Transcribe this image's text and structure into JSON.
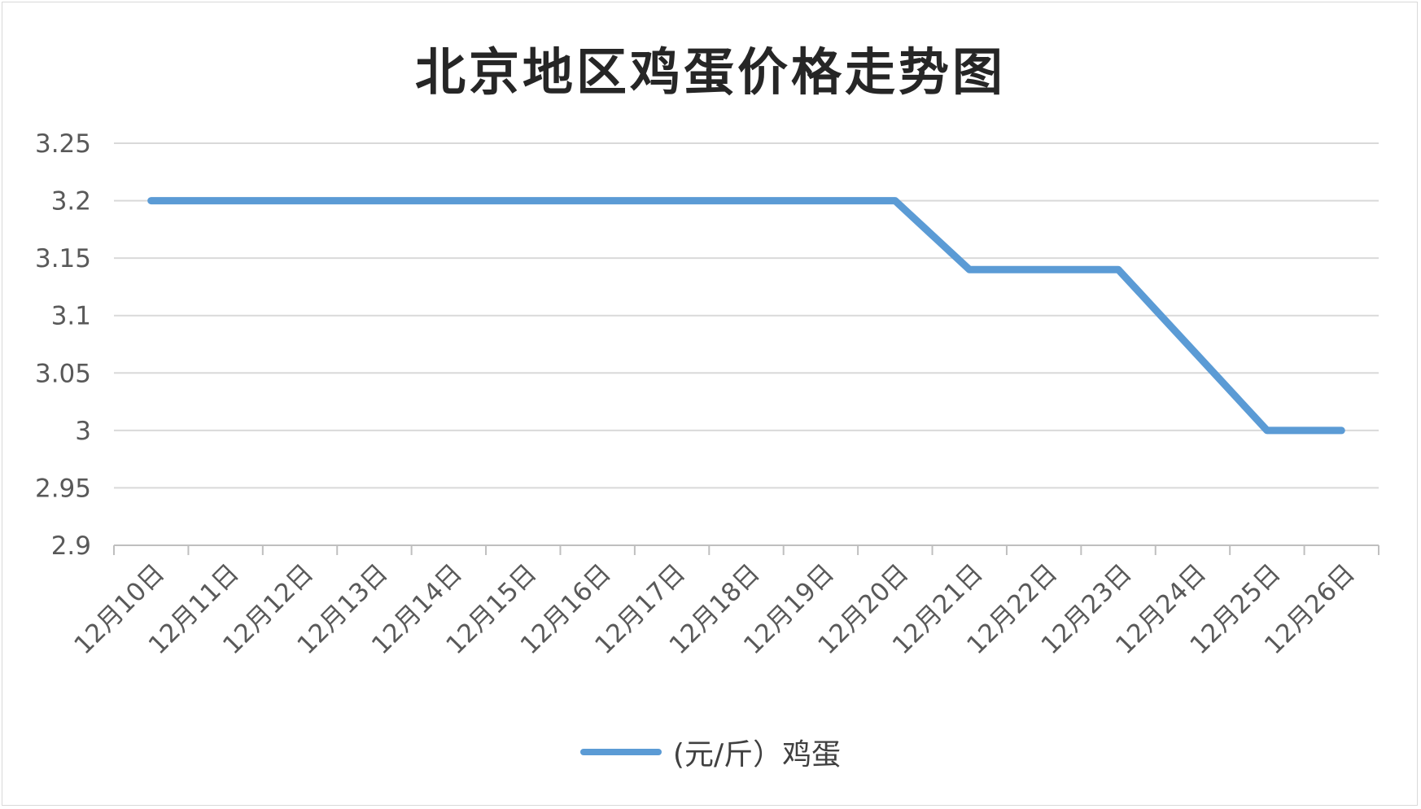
{
  "chart_data": {
    "type": "line",
    "title": "北京地区鸡蛋价格走势图",
    "categories": [
      "12月10日",
      "12月11日",
      "12月12日",
      "12月13日",
      "12月14日",
      "12月15日",
      "12月16日",
      "12月17日",
      "12月18日",
      "12月19日",
      "12月20日",
      "12月21日",
      "12月22日",
      "12月23日",
      "12月24日",
      "12月25日",
      "12月26日"
    ],
    "series": [
      {
        "name": "(元/斤）鸡蛋",
        "values": [
          3.2,
          3.2,
          3.2,
          3.2,
          3.2,
          3.2,
          3.2,
          3.2,
          3.2,
          3.2,
          3.2,
          3.14,
          3.14,
          3.14,
          3.07,
          3.0,
          3.0
        ]
      }
    ],
    "ylim": [
      2.9,
      3.25
    ],
    "yticks": [
      "3.25",
      "3.2",
      "3.15",
      "3.1",
      "3.05",
      "3",
      "2.95",
      "2.9"
    ],
    "grid": true,
    "legend": "bottom",
    "line_color": "#5b9bd5",
    "grid_color": "#d9d9d9"
  }
}
